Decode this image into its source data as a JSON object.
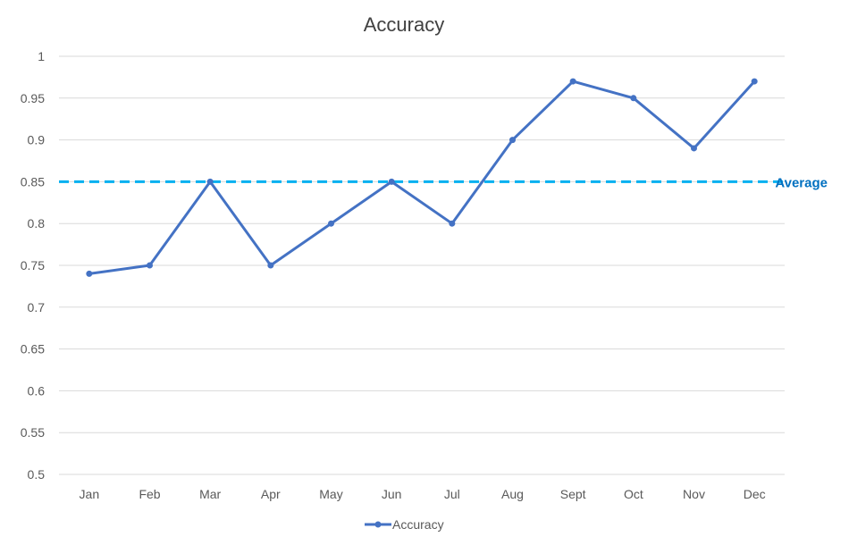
{
  "chart_data": {
    "type": "line",
    "title": "Accuracy",
    "xlabel": "",
    "ylabel": "",
    "categories": [
      "Jan",
      "Feb",
      "Mar",
      "Apr",
      "May",
      "Jun",
      "Jul",
      "Aug",
      "Sept",
      "Oct",
      "Nov",
      "Dec"
    ],
    "series": [
      {
        "name": "Accuracy",
        "values": [
          0.74,
          0.75,
          0.85,
          0.75,
          0.8,
          0.85,
          0.8,
          0.9,
          0.97,
          0.95,
          0.89,
          0.97
        ],
        "color": "#4472c4"
      }
    ],
    "ylim": [
      0.5,
      1
    ],
    "yticks": [
      "1",
      "0.95",
      "0.9",
      "0.85",
      "0.8",
      "0.75",
      "0.7",
      "0.65",
      "0.6",
      "0.55",
      "0.5"
    ],
    "grid": true,
    "legend": "bottom",
    "reference_line": {
      "label": "Average",
      "value": 0.85,
      "color": "#00b0f0",
      "label_color": "#0070c0",
      "style": "dashed"
    }
  }
}
